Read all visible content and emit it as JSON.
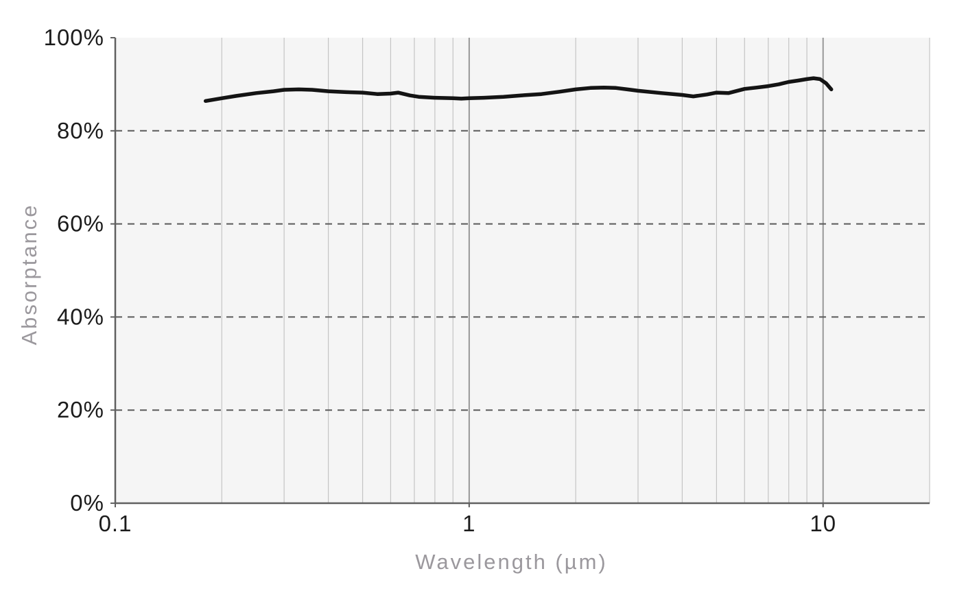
{
  "chart_data": {
    "type": "line",
    "title": "",
    "xlabel": "Wavelength (µm)",
    "ylabel": "Absorptance",
    "x_scale": "log",
    "x_range": [
      0.1,
      20
    ],
    "y_range": [
      0,
      100
    ],
    "grid_visible": true,
    "legend": "none",
    "x_ticks": [
      {
        "value": 0.1,
        "label": "0.1"
      },
      {
        "value": 1,
        "label": "1"
      },
      {
        "value": 10,
        "label": "10"
      }
    ],
    "y_ticks": [
      {
        "value": 0,
        "label": "0%"
      },
      {
        "value": 20,
        "label": "20%"
      },
      {
        "value": 40,
        "label": "40%"
      },
      {
        "value": 60,
        "label": "60%"
      },
      {
        "value": 80,
        "label": "80%"
      },
      {
        "value": 100,
        "label": "100%"
      }
    ],
    "grid": {
      "minor_x": [
        0.2,
        0.3,
        0.4,
        0.5,
        0.6,
        0.7,
        0.8,
        0.9,
        2,
        3,
        4,
        5,
        6,
        7,
        8,
        9,
        20
      ],
      "major_x": [
        1,
        10
      ],
      "dashed_y": [
        20,
        40,
        60,
        80
      ]
    },
    "series": [
      {
        "name": "Absorptance",
        "color": "#141414",
        "points": [
          [
            0.18,
            86.4
          ],
          [
            0.2,
            87.0
          ],
          [
            0.22,
            87.5
          ],
          [
            0.25,
            88.1
          ],
          [
            0.28,
            88.5
          ],
          [
            0.3,
            88.8
          ],
          [
            0.33,
            88.9
          ],
          [
            0.36,
            88.8
          ],
          [
            0.4,
            88.5
          ],
          [
            0.45,
            88.3
          ],
          [
            0.5,
            88.2
          ],
          [
            0.55,
            87.9
          ],
          [
            0.6,
            88.0
          ],
          [
            0.63,
            88.2
          ],
          [
            0.68,
            87.6
          ],
          [
            0.72,
            87.3
          ],
          [
            0.8,
            87.1
          ],
          [
            0.9,
            87.0
          ],
          [
            0.95,
            86.9
          ],
          [
            1.0,
            87.0
          ],
          [
            1.1,
            87.1
          ],
          [
            1.25,
            87.3
          ],
          [
            1.4,
            87.6
          ],
          [
            1.6,
            87.9
          ],
          [
            1.8,
            88.4
          ],
          [
            2.0,
            88.9
          ],
          [
            2.2,
            89.2
          ],
          [
            2.4,
            89.3
          ],
          [
            2.6,
            89.2
          ],
          [
            2.8,
            88.9
          ],
          [
            3.0,
            88.6
          ],
          [
            3.5,
            88.1
          ],
          [
            4.0,
            87.7
          ],
          [
            4.3,
            87.4
          ],
          [
            4.7,
            87.8
          ],
          [
            5.0,
            88.2
          ],
          [
            5.4,
            88.1
          ],
          [
            6.0,
            89.0
          ],
          [
            6.5,
            89.3
          ],
          [
            7.0,
            89.6
          ],
          [
            7.5,
            90.0
          ],
          [
            8.0,
            90.5
          ],
          [
            8.5,
            90.8
          ],
          [
            9.0,
            91.1
          ],
          [
            9.4,
            91.3
          ],
          [
            9.8,
            91.1
          ],
          [
            10.2,
            90.2
          ],
          [
            10.55,
            88.9
          ]
        ]
      }
    ]
  },
  "colors": {
    "plot_background": "#f5f5f5",
    "grid_minor": "#c4c4c4",
    "grid_major": "#979797",
    "grid_dashed": "#5a5a5a",
    "axis_line": "#606060",
    "tick_text": "#1c1c1c",
    "title_text": "#9b989d",
    "line": "#141414"
  }
}
